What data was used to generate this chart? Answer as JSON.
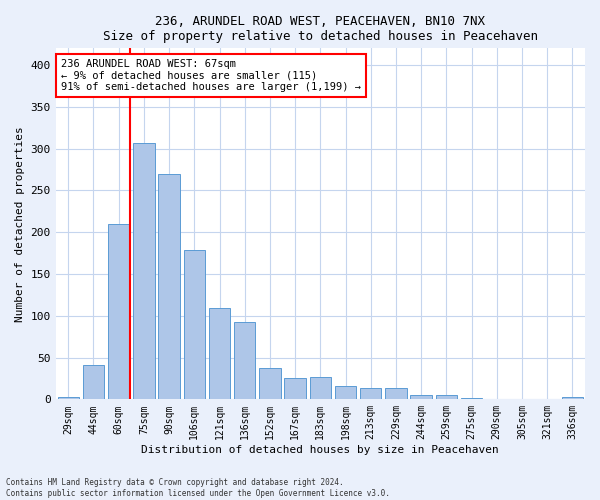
{
  "title_line1": "236, ARUNDEL ROAD WEST, PEACEHAVEN, BN10 7NX",
  "title_line2": "Size of property relative to detached houses in Peacehaven",
  "xlabel": "Distribution of detached houses by size in Peacehaven",
  "ylabel": "Number of detached properties",
  "categories": [
    "29sqm",
    "44sqm",
    "60sqm",
    "75sqm",
    "90sqm",
    "106sqm",
    "121sqm",
    "136sqm",
    "152sqm",
    "167sqm",
    "183sqm",
    "198sqm",
    "213sqm",
    "229sqm",
    "244sqm",
    "259sqm",
    "275sqm",
    "290sqm",
    "305sqm",
    "321sqm",
    "336sqm"
  ],
  "values": [
    3,
    41,
    210,
    307,
    270,
    179,
    109,
    92,
    37,
    26,
    27,
    16,
    13,
    13,
    5,
    5,
    1,
    0,
    0,
    0,
    3
  ],
  "bar_color": "#aec6e8",
  "bar_edge_color": "#5b9bd5",
  "vline_color": "red",
  "vline_x_index": 2.43,
  "annotation_text": "236 ARUNDEL ROAD WEST: 67sqm\n← 9% of detached houses are smaller (115)\n91% of semi-detached houses are larger (1,199) →",
  "annotation_box_color": "white",
  "annotation_box_edge_color": "red",
  "ylim": [
    0,
    420
  ],
  "yticks": [
    0,
    50,
    100,
    150,
    200,
    250,
    300,
    350,
    400
  ],
  "footer_line1": "Contains HM Land Registry data © Crown copyright and database right 2024.",
  "footer_line2": "Contains public sector information licensed under the Open Government Licence v3.0.",
  "background_color": "#eaf0fb",
  "plot_bg_color": "#ffffff",
  "grid_color": "#c5d5ee"
}
